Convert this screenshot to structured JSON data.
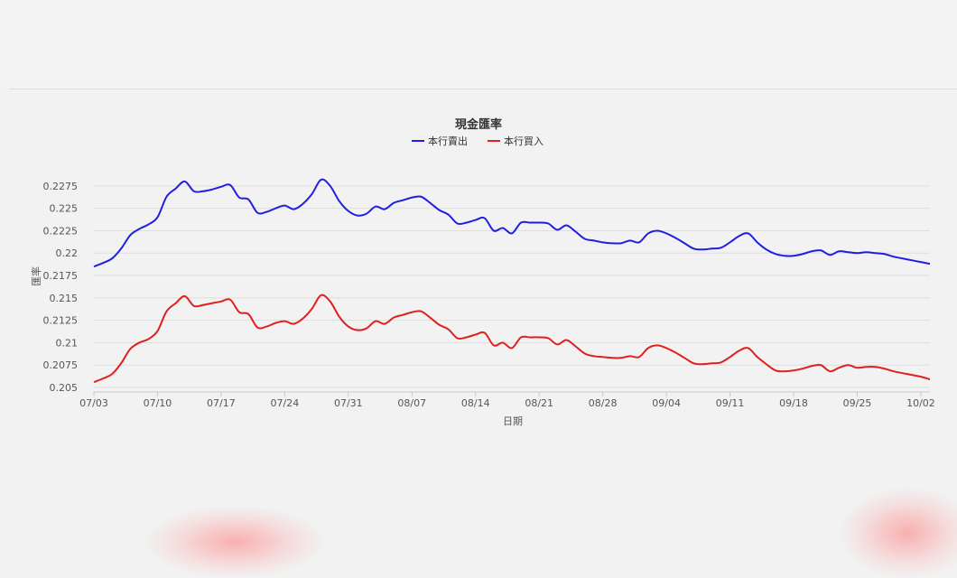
{
  "chart_data": {
    "type": "line",
    "title": "現金匯率",
    "xlabel": "日期",
    "ylabel": "匯率",
    "x_ticks": [
      "07/03",
      "07/10",
      "07/17",
      "07/24",
      "07/31",
      "08/07",
      "08/14",
      "08/21",
      "08/28",
      "09/04",
      "09/11",
      "09/18",
      "09/25",
      "10/02"
    ],
    "y_ticks": [
      "0.205",
      "0.2075",
      "0.21",
      "0.2125",
      "0.215",
      "0.2175",
      "0.22",
      "0.2225",
      "0.225",
      "0.2275"
    ],
    "ylim": [
      0.2045,
      0.2295
    ],
    "xlim": [
      "2023-07-03",
      "2023-10-03"
    ],
    "grid": true,
    "legend": "top-center",
    "series": [
      {
        "name": "本行賣出",
        "color": "#1f1fe0",
        "points": [
          [
            "2023-07-03",
            0.2185
          ],
          [
            "2023-07-04",
            0.2189
          ],
          [
            "2023-07-05",
            0.2194
          ],
          [
            "2023-07-06",
            0.2205
          ],
          [
            "2023-07-07",
            0.222
          ],
          [
            "2023-07-08",
            0.2227
          ],
          [
            "2023-07-09",
            0.2232
          ],
          [
            "2023-07-10",
            0.224
          ],
          [
            "2023-07-11",
            0.2263
          ],
          [
            "2023-07-12",
            0.2272
          ],
          [
            "2023-07-13",
            0.228
          ],
          [
            "2023-07-14",
            0.2269
          ],
          [
            "2023-07-15",
            0.2269
          ],
          [
            "2023-07-16",
            0.2271
          ],
          [
            "2023-07-17",
            0.2274
          ],
          [
            "2023-07-18",
            0.2276
          ],
          [
            "2023-07-19",
            0.2262
          ],
          [
            "2023-07-20",
            0.226
          ],
          [
            "2023-07-21",
            0.2245
          ],
          [
            "2023-07-22",
            0.2246
          ],
          [
            "2023-07-23",
            0.225
          ],
          [
            "2023-07-24",
            0.2253
          ],
          [
            "2023-07-25",
            0.2249
          ],
          [
            "2023-07-26",
            0.2255
          ],
          [
            "2023-07-27",
            0.2266
          ],
          [
            "2023-07-28",
            0.2282
          ],
          [
            "2023-07-29",
            0.2275
          ],
          [
            "2023-07-30",
            0.2258
          ],
          [
            "2023-07-31",
            0.2247
          ],
          [
            "2023-08-01",
            0.2242
          ],
          [
            "2023-08-02",
            0.2244
          ],
          [
            "2023-08-03",
            0.2252
          ],
          [
            "2023-08-04",
            0.2249
          ],
          [
            "2023-08-05",
            0.2256
          ],
          [
            "2023-08-06",
            0.2259
          ],
          [
            "2023-08-07",
            0.2262
          ],
          [
            "2023-08-08",
            0.2263
          ],
          [
            "2023-08-09",
            0.2256
          ],
          [
            "2023-08-10",
            0.2248
          ],
          [
            "2023-08-11",
            0.2243
          ],
          [
            "2023-08-12",
            0.2233
          ],
          [
            "2023-08-13",
            0.2234
          ],
          [
            "2023-08-14",
            0.2237
          ],
          [
            "2023-08-15",
            0.2239
          ],
          [
            "2023-08-16",
            0.2225
          ],
          [
            "2023-08-17",
            0.2228
          ],
          [
            "2023-08-18",
            0.2222
          ],
          [
            "2023-08-19",
            0.2234
          ],
          [
            "2023-08-20",
            0.2234
          ],
          [
            "2023-08-21",
            0.2234
          ],
          [
            "2023-08-22",
            0.2233
          ],
          [
            "2023-08-23",
            0.2226
          ],
          [
            "2023-08-24",
            0.2231
          ],
          [
            "2023-08-25",
            0.2224
          ],
          [
            "2023-08-26",
            0.2216
          ],
          [
            "2023-08-27",
            0.2214
          ],
          [
            "2023-08-28",
            0.2212
          ],
          [
            "2023-08-29",
            0.2211
          ],
          [
            "2023-08-30",
            0.2211
          ],
          [
            "2023-08-31",
            0.2214
          ],
          [
            "2023-09-01",
            0.2212
          ],
          [
            "2023-09-02",
            0.2222
          ],
          [
            "2023-09-03",
            0.2225
          ],
          [
            "2023-09-04",
            0.2222
          ],
          [
            "2023-09-05",
            0.2217
          ],
          [
            "2023-09-06",
            0.2211
          ],
          [
            "2023-09-07",
            0.2205
          ],
          [
            "2023-09-08",
            0.2204
          ],
          [
            "2023-09-09",
            0.2205
          ],
          [
            "2023-09-10",
            0.2206
          ],
          [
            "2023-09-11",
            0.2212
          ],
          [
            "2023-09-12",
            0.2219
          ],
          [
            "2023-09-13",
            0.2222
          ],
          [
            "2023-09-14",
            0.2212
          ],
          [
            "2023-09-15",
            0.2204
          ],
          [
            "2023-09-16",
            0.2199
          ],
          [
            "2023-09-17",
            0.2197
          ],
          [
            "2023-09-18",
            0.2197
          ],
          [
            "2023-09-19",
            0.2199
          ],
          [
            "2023-09-20",
            0.2202
          ],
          [
            "2023-09-21",
            0.2203
          ],
          [
            "2023-09-22",
            0.2198
          ],
          [
            "2023-09-23",
            0.2202
          ],
          [
            "2023-09-24",
            0.2201
          ],
          [
            "2023-09-25",
            0.22
          ],
          [
            "2023-09-26",
            0.2201
          ],
          [
            "2023-09-27",
            0.22
          ],
          [
            "2023-09-28",
            0.2199
          ],
          [
            "2023-09-29",
            0.2196
          ],
          [
            "2023-09-30",
            0.2194
          ],
          [
            "2023-10-01",
            0.2192
          ],
          [
            "2023-10-02",
            0.219
          ],
          [
            "2023-10-03",
            0.2188
          ]
        ]
      },
      {
        "name": "本行買入",
        "color": "#e01f1f",
        "points": [
          [
            "2023-07-03",
            0.2056
          ],
          [
            "2023-07-04",
            0.206
          ],
          [
            "2023-07-05",
            0.2065
          ],
          [
            "2023-07-06",
            0.2077
          ],
          [
            "2023-07-07",
            0.2093
          ],
          [
            "2023-07-08",
            0.21
          ],
          [
            "2023-07-09",
            0.2104
          ],
          [
            "2023-07-10",
            0.2113
          ],
          [
            "2023-07-11",
            0.2135
          ],
          [
            "2023-07-12",
            0.2144
          ],
          [
            "2023-07-13",
            0.2152
          ],
          [
            "2023-07-14",
            0.2141
          ],
          [
            "2023-07-15",
            0.2142
          ],
          [
            "2023-07-16",
            0.2144
          ],
          [
            "2023-07-17",
            0.2146
          ],
          [
            "2023-07-18",
            0.2148
          ],
          [
            "2023-07-19",
            0.2134
          ],
          [
            "2023-07-20",
            0.2132
          ],
          [
            "2023-07-21",
            0.2117
          ],
          [
            "2023-07-22",
            0.2118
          ],
          [
            "2023-07-23",
            0.2122
          ],
          [
            "2023-07-24",
            0.2124
          ],
          [
            "2023-07-25",
            0.2121
          ],
          [
            "2023-07-26",
            0.2127
          ],
          [
            "2023-07-27",
            0.2138
          ],
          [
            "2023-07-28",
            0.2153
          ],
          [
            "2023-07-29",
            0.2146
          ],
          [
            "2023-07-30",
            0.2129
          ],
          [
            "2023-07-31",
            0.2118
          ],
          [
            "2023-08-01",
            0.2114
          ],
          [
            "2023-08-02",
            0.2116
          ],
          [
            "2023-08-03",
            0.2124
          ],
          [
            "2023-08-04",
            0.2121
          ],
          [
            "2023-08-05",
            0.2128
          ],
          [
            "2023-08-06",
            0.2131
          ],
          [
            "2023-08-07",
            0.2134
          ],
          [
            "2023-08-08",
            0.2135
          ],
          [
            "2023-08-09",
            0.2128
          ],
          [
            "2023-08-10",
            0.212
          ],
          [
            "2023-08-11",
            0.2115
          ],
          [
            "2023-08-12",
            0.2105
          ],
          [
            "2023-08-13",
            0.2106
          ],
          [
            "2023-08-14",
            0.2109
          ],
          [
            "2023-08-15",
            0.2111
          ],
          [
            "2023-08-16",
            0.2097
          ],
          [
            "2023-08-17",
            0.21
          ],
          [
            "2023-08-18",
            0.2094
          ],
          [
            "2023-08-19",
            0.2106
          ],
          [
            "2023-08-20",
            0.2106
          ],
          [
            "2023-08-21",
            0.2106
          ],
          [
            "2023-08-22",
            0.2105
          ],
          [
            "2023-08-23",
            0.2098
          ],
          [
            "2023-08-24",
            0.2103
          ],
          [
            "2023-08-25",
            0.2096
          ],
          [
            "2023-08-26",
            0.2088
          ],
          [
            "2023-08-27",
            0.2085
          ],
          [
            "2023-08-28",
            0.2084
          ],
          [
            "2023-08-29",
            0.2083
          ],
          [
            "2023-08-30",
            0.2083
          ],
          [
            "2023-08-31",
            0.2085
          ],
          [
            "2023-09-01",
            0.2084
          ],
          [
            "2023-09-02",
            0.2094
          ],
          [
            "2023-09-03",
            0.2097
          ],
          [
            "2023-09-04",
            0.2094
          ],
          [
            "2023-09-05",
            0.2089
          ],
          [
            "2023-09-06",
            0.2083
          ],
          [
            "2023-09-07",
            0.2077
          ],
          [
            "2023-09-08",
            0.2076
          ],
          [
            "2023-09-09",
            0.2077
          ],
          [
            "2023-09-10",
            0.2078
          ],
          [
            "2023-09-11",
            0.2084
          ],
          [
            "2023-09-12",
            0.2091
          ],
          [
            "2023-09-13",
            0.2094
          ],
          [
            "2023-09-14",
            0.2084
          ],
          [
            "2023-09-15",
            0.2076
          ],
          [
            "2023-09-16",
            0.2069
          ],
          [
            "2023-09-17",
            0.2068
          ],
          [
            "2023-09-18",
            0.2069
          ],
          [
            "2023-09-19",
            0.2071
          ],
          [
            "2023-09-20",
            0.2074
          ],
          [
            "2023-09-21",
            0.2075
          ],
          [
            "2023-09-22",
            0.2068
          ],
          [
            "2023-09-23",
            0.2072
          ],
          [
            "2023-09-24",
            0.2075
          ],
          [
            "2023-09-25",
            0.2072
          ],
          [
            "2023-09-26",
            0.2073
          ],
          [
            "2023-09-27",
            0.2073
          ],
          [
            "2023-09-28",
            0.2071
          ],
          [
            "2023-09-29",
            0.2068
          ],
          [
            "2023-09-30",
            0.2066
          ],
          [
            "2023-10-01",
            0.2064
          ],
          [
            "2023-10-02",
            0.2062
          ],
          [
            "2023-10-03",
            0.2059
          ]
        ]
      }
    ]
  }
}
